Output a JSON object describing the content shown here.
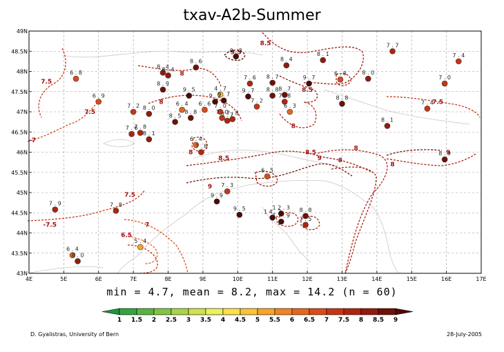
{
  "title": "txav-A2b-Summer",
  "stats": "min = 4.7, mean = 8.2, max = 14.2 (n = 60)",
  "credit": "D. Gyalistras, University of Bern",
  "date": "28-July-2005",
  "chart_data": {
    "type": "scatter",
    "subtype": "station map with dashed contour isolines",
    "title": "txav-A2b-Summer",
    "x_ticks": [
      "4E",
      "5E",
      "6E",
      "7E",
      "8E",
      "9E",
      "10E",
      "11E",
      "12E",
      "13E",
      "14E",
      "15E",
      "16E",
      "17E"
    ],
    "y_ticks": [
      "43N",
      "43.5N",
      "44N",
      "44.5N",
      "45N",
      "45.5N",
      "46N",
      "46.5N",
      "47N",
      "47.5N",
      "48N",
      "48.5N",
      "49N"
    ],
    "xlim": [
      4,
      17
    ],
    "ylim": [
      43,
      49
    ],
    "grid": true,
    "colorbar": {
      "labels": [
        "1",
        "1.5",
        "2",
        "2.5",
        "3",
        "3.5",
        "4",
        "4.5",
        "5",
        "5.5",
        "6",
        "6.5",
        "7",
        "7.5",
        "8",
        "8.5",
        "9"
      ],
      "colors": [
        "#1a9641",
        "#33a63e",
        "#57b540",
        "#82c443",
        "#a9d448",
        "#cde34f",
        "#eef15c",
        "#fde04a",
        "#fbc437",
        "#f7a52a",
        "#f08522",
        "#e8651c",
        "#dc4a18",
        "#c93514",
        "#b02410",
        "#931a0e",
        "#701008",
        "#4d0a05"
      ]
    },
    "contour_labels": [
      {
        "text": "8.5",
        "lon": 10.8,
        "lat": 48.65
      },
      {
        "text": "9.5",
        "lon": 9.95,
        "lat": 48.43
      },
      {
        "text": "7.5",
        "lon": 4.5,
        "lat": 47.7
      },
      {
        "text": "8",
        "lon": 8.4,
        "lat": 47.9
      },
      {
        "text": "8.5",
        "lon": 12,
        "lat": 47.5
      },
      {
        "text": "8",
        "lon": 7.8,
        "lat": 47.2
      },
      {
        "text": "7.5",
        "lon": 5.75,
        "lat": 46.95
      },
      {
        "text": "7.5",
        "lon": 15.75,
        "lat": 47.2
      },
      {
        "text": "8",
        "lon": 11.6,
        "lat": 46.6
      },
      {
        "text": "-7",
        "lon": 4.1,
        "lat": 46.25
      },
      {
        "text": "8",
        "lon": 8.65,
        "lat": 45.95
      },
      {
        "text": "8.5",
        "lon": 9.6,
        "lat": 45.8
      },
      {
        "text": "8.5",
        "lon": 12.1,
        "lat": 45.95
      },
      {
        "text": "9",
        "lon": 12.35,
        "lat": 45.8
      },
      {
        "text": "8",
        "lon": 13.4,
        "lat": 46.05
      },
      {
        "text": "8",
        "lon": 12.95,
        "lat": 45.75
      },
      {
        "text": "8",
        "lon": 14.45,
        "lat": 45.65
      },
      {
        "text": "9",
        "lon": 16.05,
        "lat": 45.95
      },
      {
        "text": "9",
        "lon": 9.2,
        "lat": 45.1
      },
      {
        "text": "7.5",
        "lon": 6.9,
        "lat": 44.9
      },
      {
        "text": "-7.5",
        "lon": 4.6,
        "lat": 44.15
      },
      {
        "text": "7",
        "lon": 7.4,
        "lat": 44.15
      },
      {
        "text": "6.5",
        "lon": 6.8,
        "lat": 43.9
      }
    ],
    "stations": [
      {
        "lon": 5.35,
        "lat": 47.82,
        "value": 6.8
      },
      {
        "lon": 6.0,
        "lat": 47.25,
        "value": 6.9
      },
      {
        "lon": 7.0,
        "lat": 47.0,
        "value": 7.2
      },
      {
        "lon": 7.45,
        "lat": 46.95,
        "value": 8.0
      },
      {
        "lon": 7.85,
        "lat": 47.55,
        "value": 8.9
      },
      {
        "lon": 7.85,
        "lat": 47.97,
        "value": 8.4
      },
      {
        "lon": 8.0,
        "lat": 47.9,
        "value": 8.4
      },
      {
        "lon": 8.8,
        "lat": 48.1,
        "value": 8.6
      },
      {
        "lon": 8.6,
        "lat": 47.4,
        "value": 9.5
      },
      {
        "lon": 8.4,
        "lat": 47.05,
        "value": 6.4
      },
      {
        "lon": 8.2,
        "lat": 46.75,
        "value": 8.5
      },
      {
        "lon": 8.65,
        "lat": 46.85,
        "value": 8.8
      },
      {
        "lon": 9.05,
        "lat": 47.05,
        "value": 6.6
      },
      {
        "lon": 9.5,
        "lat": 47.43,
        "value": 4.7
      },
      {
        "lon": 9.35,
        "lat": 47.25,
        "value": 9.2
      },
      {
        "lon": 9.6,
        "lat": 47.28,
        "value": 9.7
      },
      {
        "lon": 9.5,
        "lat": 47.0,
        "value": 7.0
      },
      {
        "lon": 9.55,
        "lat": 46.85,
        "value": 7.0
      },
      {
        "lon": 9.7,
        "lat": 46.78,
        "value": 7.7
      },
      {
        "lon": 9.85,
        "lat": 46.82,
        "value": 7.8
      },
      {
        "lon": 9.95,
        "lat": 48.37,
        "value": 9.3
      },
      {
        "lon": 10.35,
        "lat": 47.7,
        "value": 7.6
      },
      {
        "lon": 10.3,
        "lat": 47.38,
        "value": 9.7
      },
      {
        "lon": 10.55,
        "lat": 47.13,
        "value": 7.2
      },
      {
        "lon": 11.0,
        "lat": 47.72,
        "value": 8.7
      },
      {
        "lon": 11.0,
        "lat": 47.4,
        "value": 8.8
      },
      {
        "lon": 11.35,
        "lat": 47.42,
        "value": 8.7
      },
      {
        "lon": 11.4,
        "lat": 48.15,
        "value": 8.4
      },
      {
        "lon": 11.35,
        "lat": 47.25,
        "value": 7.8
      },
      {
        "lon": 11.5,
        "lat": 47.0,
        "value": 6.3
      },
      {
        "lon": 12.05,
        "lat": 47.7,
        "value": 9.7
      },
      {
        "lon": 12.45,
        "lat": 48.28,
        "value": 8.1
      },
      {
        "lon": 12.95,
        "lat": 47.8,
        "value": 6.8
      },
      {
        "lon": 13.0,
        "lat": 47.2,
        "value": 8.8
      },
      {
        "lon": 13.75,
        "lat": 47.82,
        "value": 8.0
      },
      {
        "lon": 14.45,
        "lat": 48.5,
        "value": 7.7
      },
      {
        "lon": 14.3,
        "lat": 46.65,
        "value": 8.1
      },
      {
        "lon": 15.45,
        "lat": 47.08,
        "value": 7.4
      },
      {
        "lon": 15.95,
        "lat": 47.7,
        "value": 7.0
      },
      {
        "lon": 16.35,
        "lat": 48.25,
        "value": 7.4
      },
      {
        "lon": 15.95,
        "lat": 45.82,
        "value": 8.9
      },
      {
        "lon": 6.95,
        "lat": 46.45,
        "value": 7.6
      },
      {
        "lon": 7.2,
        "lat": 46.48,
        "value": 7.8
      },
      {
        "lon": 7.45,
        "lat": 46.32,
        "value": 8.1
      },
      {
        "lon": 8.8,
        "lat": 46.18,
        "value": 6.4
      },
      {
        "lon": 8.95,
        "lat": 46.0,
        "value": 7.8
      },
      {
        "lon": 10.85,
        "lat": 45.4,
        "value": 6.5
      },
      {
        "lon": 9.7,
        "lat": 45.03,
        "value": 7.3
      },
      {
        "lon": 9.4,
        "lat": 44.78,
        "value": 9.9
      },
      {
        "lon": 10.05,
        "lat": 44.45,
        "value": 9.5
      },
      {
        "lon": 11.0,
        "lat": 44.38,
        "value": 14.2
      },
      {
        "lon": 11.25,
        "lat": 44.48,
        "value": 12.3
      },
      {
        "lon": 11.25,
        "lat": 44.28,
        "value": 11.9
      },
      {
        "lon": 11.95,
        "lat": 44.42,
        "value": 8.8
      },
      {
        "lon": 11.95,
        "lat": 44.2,
        "value": 7.5
      },
      {
        "lon": 4.75,
        "lat": 44.58,
        "value": 7.9
      },
      {
        "lon": 6.5,
        "lat": 44.55,
        "value": 7.8
      },
      {
        "lon": 7.2,
        "lat": 43.65,
        "value": 5.4
      },
      {
        "lon": 5.25,
        "lat": 43.45,
        "value": 6.4
      },
      {
        "lon": 5.4,
        "lat": 43.3,
        "value": 8.0
      }
    ]
  }
}
